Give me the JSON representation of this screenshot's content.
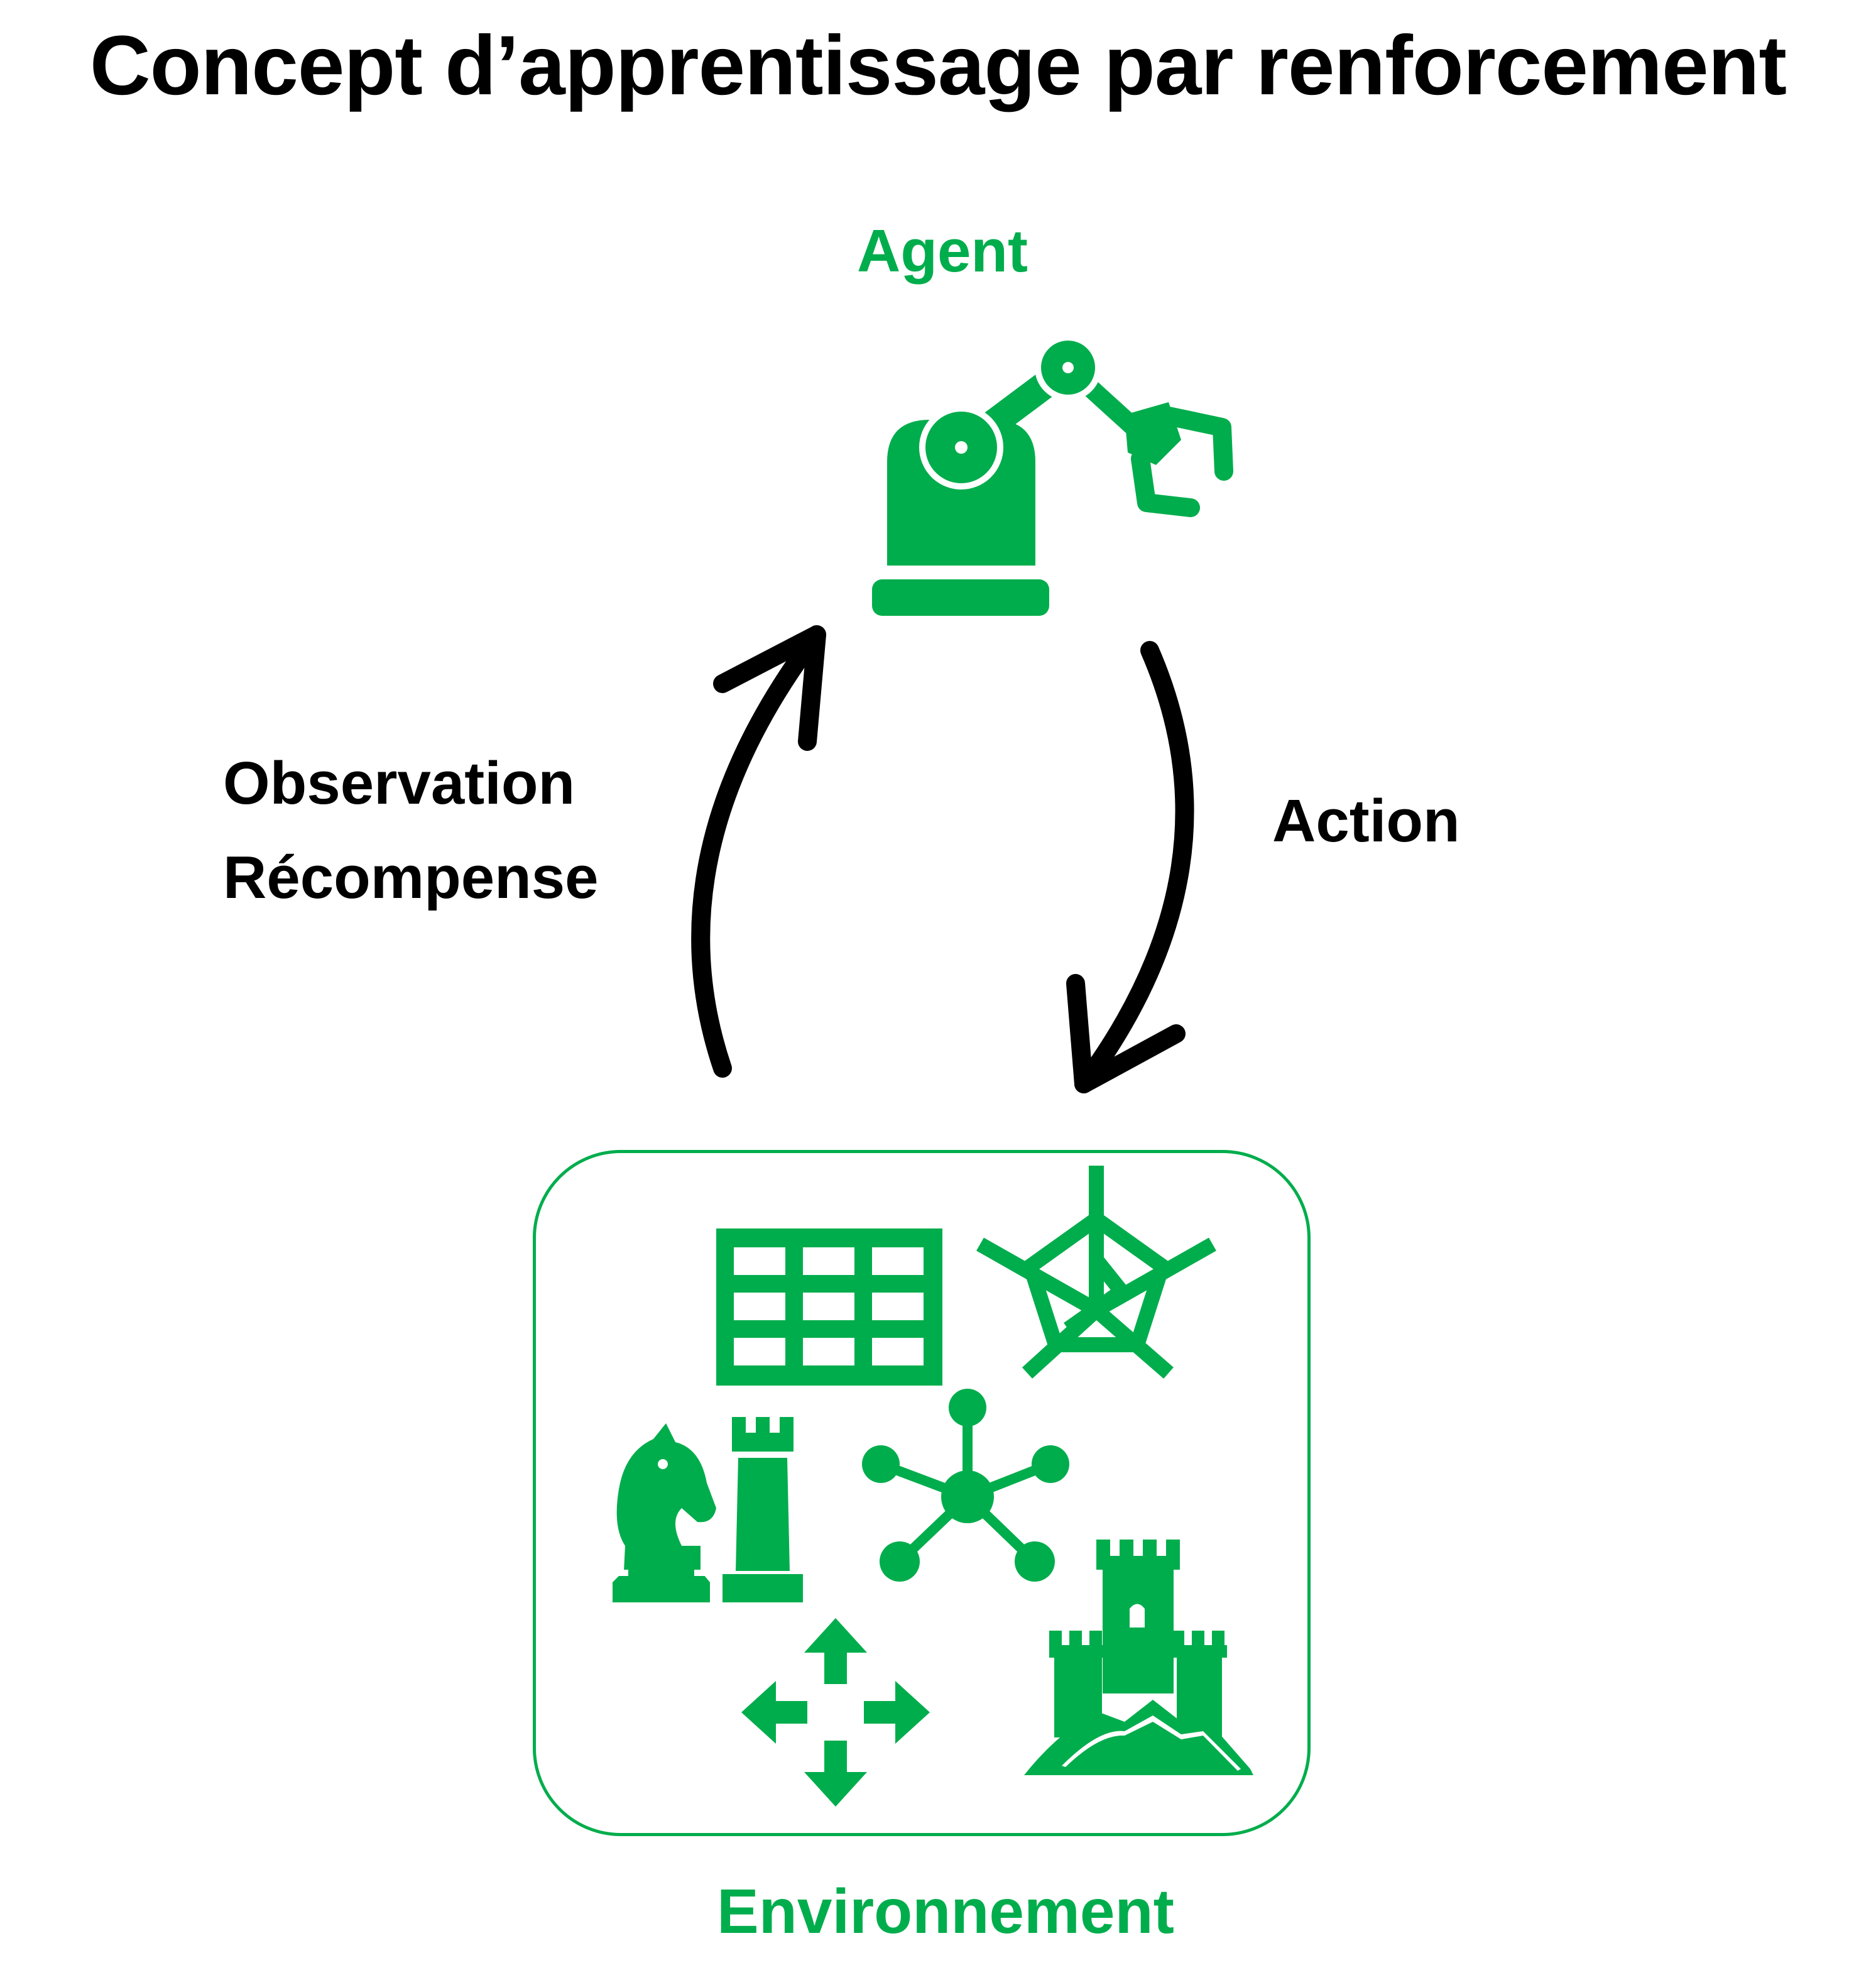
{
  "title": "Concept d’apprentissage par renforcement",
  "agent": {
    "label": "Agent",
    "icon": "robot-arm-icon"
  },
  "environment": {
    "label": "Environnement",
    "icons": [
      "grid-table-icon",
      "radar-chart-icon",
      "chess-pieces-icon",
      "network-hub-icon",
      "move-arrows-icon",
      "castle-icon"
    ]
  },
  "arrows": {
    "observation": {
      "lines": [
        "Observation",
        "Récompense"
      ]
    },
    "action": {
      "label": "Action"
    }
  },
  "colors": {
    "accent": "#00ad4c",
    "text": "#000000",
    "background": "#ffffff"
  }
}
